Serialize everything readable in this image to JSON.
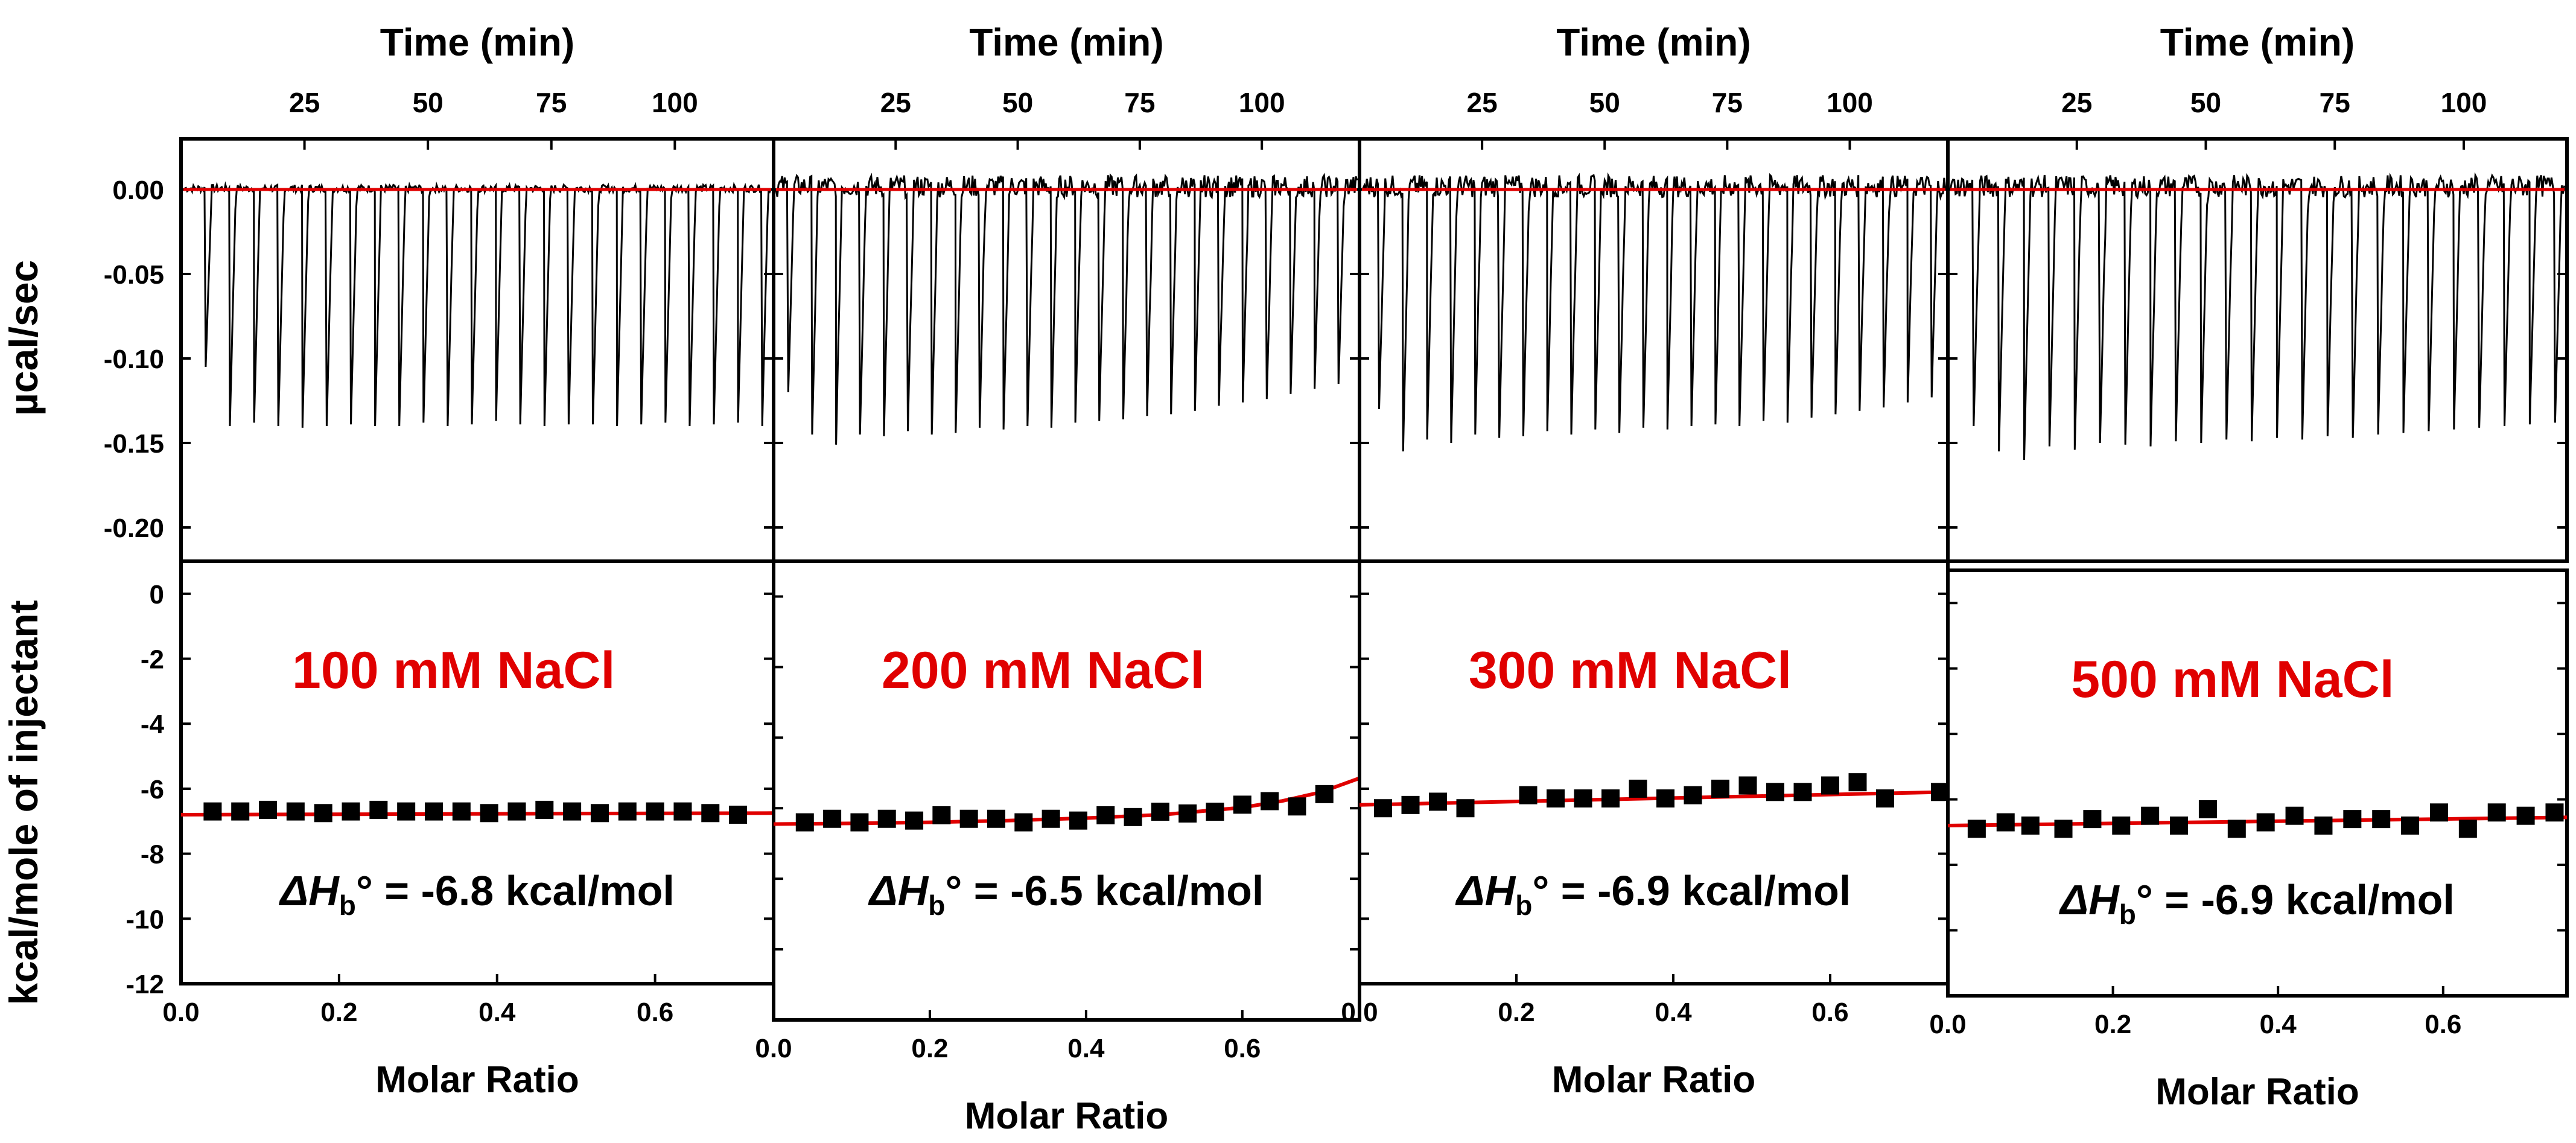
{
  "figure": {
    "y_label_top": "µcal/sec",
    "y_label_bottom": "kcal/mole of injectant",
    "fit_color": "#e00000",
    "data_color": "#000000"
  },
  "chart_data": [
    {
      "type": "line",
      "panel": "raw",
      "salt_label": "100 mM NaCl",
      "top_xlabel": "Time (min)",
      "x_ticks": [
        25,
        50,
        75,
        100
      ],
      "xlim": [
        0,
        120
      ],
      "ylabel": "µcal/sec",
      "ylim": [
        -0.22,
        0.03
      ],
      "y_ticks": [
        "0.00",
        "-0.05",
        "-0.10",
        "-0.15",
        "-0.20"
      ],
      "baseline": 0.0,
      "injection_times": [
        5,
        9.9,
        14.8,
        19.7,
        24.6,
        29.5,
        34.4,
        39.3,
        44.2,
        49.1,
        54,
        58.9,
        63.8,
        68.7,
        73.6,
        78.5,
        83.4,
        88.3,
        93.2,
        98.1,
        103,
        107.9,
        112.8,
        117.7
      ],
      "peak_minima": [
        -0.105,
        -0.14,
        -0.138,
        -0.14,
        -0.141,
        -0.14,
        -0.139,
        -0.14,
        -0.14,
        -0.138,
        -0.14,
        -0.139,
        -0.137,
        -0.139,
        -0.14,
        -0.139,
        -0.139,
        -0.14,
        -0.139,
        -0.138,
        -0.14,
        -0.139,
        -0.138,
        -0.14
      ],
      "noise": 0.002
    },
    {
      "type": "line",
      "panel": "raw",
      "salt_label": "200 mM NaCl",
      "top_xlabel": "Time (min)",
      "x_ticks": [
        25,
        50,
        75,
        100
      ],
      "xlim": [
        0,
        120
      ],
      "ylabel": "µcal/sec",
      "ylim": [
        -0.22,
        0.03
      ],
      "baseline": 0.0,
      "injection_times": [
        3,
        7.9,
        12.8,
        17.7,
        22.6,
        27.5,
        32.4,
        37.3,
        42.2,
        47.1,
        52,
        56.9,
        61.8,
        66.7,
        71.6,
        76.5,
        81.4,
        86.3,
        91.2,
        96.1,
        101,
        105.9,
        110.8,
        115.7
      ],
      "peak_minima": [
        -0.12,
        -0.145,
        -0.151,
        -0.145,
        -0.146,
        -0.143,
        -0.145,
        -0.144,
        -0.141,
        -0.142,
        -0.14,
        -0.141,
        -0.138,
        -0.137,
        -0.136,
        -0.134,
        -0.133,
        -0.131,
        -0.128,
        -0.126,
        -0.124,
        -0.121,
        -0.118,
        -0.115
      ],
      "noise": 0.006
    },
    {
      "type": "line",
      "panel": "raw",
      "salt_label": "300 mM NaCl",
      "top_xlabel": "Time (min)",
      "x_ticks": [
        25,
        50,
        75,
        100
      ],
      "xlim": [
        0,
        120
      ],
      "ylabel": "µcal/sec",
      "ylim": [
        -0.22,
        0.03
      ],
      "baseline": 0.0,
      "injection_times": [
        4,
        8.9,
        13.8,
        18.7,
        23.6,
        28.5,
        33.4,
        38.3,
        43.2,
        48.1,
        53,
        57.9,
        62.8,
        67.7,
        72.6,
        77.5,
        82.4,
        87.3,
        92.2,
        97.1,
        102,
        106.9,
        111.8,
        116.7
      ],
      "peak_minima": [
        -0.13,
        -0.155,
        -0.148,
        -0.15,
        -0.145,
        -0.147,
        -0.146,
        -0.143,
        -0.145,
        -0.142,
        -0.144,
        -0.141,
        -0.142,
        -0.14,
        -0.139,
        -0.14,
        -0.137,
        -0.138,
        -0.135,
        -0.133,
        -0.131,
        -0.129,
        -0.126,
        -0.123
      ],
      "noise": 0.006
    },
    {
      "type": "line",
      "panel": "raw",
      "salt_label": "500 mM NaCl",
      "top_xlabel": "Time (min)",
      "x_ticks": [
        25,
        50,
        75,
        100
      ],
      "xlim": [
        0,
        120
      ],
      "ylabel": "µcal/sec",
      "ylim": [
        -0.22,
        0.03
      ],
      "baseline": 0.0,
      "injection_times": [
        5,
        9.9,
        14.8,
        19.7,
        24.6,
        29.5,
        34.4,
        39.3,
        44.2,
        49.1,
        54,
        58.9,
        63.8,
        68.7,
        73.6,
        78.5,
        83.4,
        88.3,
        93.2,
        98.1,
        103,
        107.9,
        112.8,
        117.7
      ],
      "peak_minima": [
        -0.14,
        -0.155,
        -0.16,
        -0.152,
        -0.154,
        -0.15,
        -0.151,
        -0.152,
        -0.149,
        -0.15,
        -0.148,
        -0.149,
        -0.147,
        -0.148,
        -0.146,
        -0.147,
        -0.145,
        -0.144,
        -0.143,
        -0.142,
        -0.141,
        -0.14,
        -0.139,
        -0.138
      ],
      "noise": 0.006
    },
    {
      "type": "scatter",
      "panel": "integrated",
      "salt_label": "100 mM NaCl",
      "dh_prefix": "ΔH",
      "dh_sub": "b",
      "dh_value": "° = -6.8  kcal/mol",
      "xlabel": "Molar Ratio",
      "ylabel": "kcal/mole of injectant",
      "xlim": [
        0.0,
        0.75
      ],
      "ylim": [
        -12,
        1
      ],
      "x_ticks": [
        "0.0",
        "0.2",
        "0.4",
        "0.6"
      ],
      "y_ticks": [
        "0",
        "-2",
        "-4",
        "-6",
        "-8",
        "-10",
        "-12"
      ],
      "x": [
        0.04,
        0.075,
        0.11,
        0.145,
        0.18,
        0.215,
        0.25,
        0.285,
        0.32,
        0.355,
        0.39,
        0.425,
        0.46,
        0.495,
        0.53,
        0.565,
        0.6,
        0.635,
        0.67,
        0.705
      ],
      "y": [
        -6.7,
        -6.7,
        -6.65,
        -6.7,
        -6.75,
        -6.7,
        -6.65,
        -6.7,
        -6.7,
        -6.7,
        -6.75,
        -6.7,
        -6.65,
        -6.7,
        -6.75,
        -6.7,
        -6.7,
        -6.7,
        -6.75,
        -6.8
      ],
      "fit": {
        "x": [
          0.0,
          0.75
        ],
        "y": [
          -6.8,
          -6.75
        ]
      }
    },
    {
      "type": "scatter",
      "panel": "integrated",
      "salt_label": "200 mM NaCl",
      "dh_prefix": "ΔH",
      "dh_sub": "b",
      "dh_value": "° = -6.5  kcal/mol",
      "xlabel": "Molar Ratio",
      "xlim": [
        0.0,
        0.75
      ],
      "ylim": [
        -12,
        1
      ],
      "x_ticks": [
        "0.0",
        "0.2",
        "0.4",
        "0.6"
      ],
      "x": [
        0.04,
        0.075,
        0.11,
        0.145,
        0.18,
        0.215,
        0.25,
        0.285,
        0.32,
        0.355,
        0.39,
        0.425,
        0.46,
        0.495,
        0.53,
        0.565,
        0.6,
        0.635,
        0.67,
        0.705
      ],
      "y": [
        -6.4,
        -6.3,
        -6.4,
        -6.3,
        -6.35,
        -6.2,
        -6.3,
        -6.3,
        -6.4,
        -6.3,
        -6.35,
        -6.2,
        -6.25,
        -6.1,
        -6.15,
        -6.1,
        -5.9,
        -5.8,
        -5.95,
        -5.6
      ],
      "fit": {
        "x": [
          0.0,
          0.1,
          0.2,
          0.3,
          0.4,
          0.5,
          0.6,
          0.65,
          0.7,
          0.75
        ],
        "y": [
          -6.45,
          -6.43,
          -6.4,
          -6.35,
          -6.28,
          -6.18,
          -5.98,
          -5.8,
          -5.55,
          -5.15
        ]
      }
    },
    {
      "type": "scatter",
      "panel": "integrated",
      "salt_label": "300 mM NaCl",
      "dh_prefix": "ΔH",
      "dh_sub": "b",
      "dh_value": "° = -6.9  kcal/mol",
      "xlabel": "Molar Ratio",
      "xlim": [
        0.0,
        0.75
      ],
      "ylim": [
        -12,
        1
      ],
      "x_ticks": [
        "0.0",
        "0.2",
        "0.4",
        "0.6"
      ],
      "x": [
        0.03,
        0.065,
        0.1,
        0.135,
        0.215,
        0.25,
        0.285,
        0.32,
        0.355,
        0.39,
        0.425,
        0.46,
        0.495,
        0.53,
        0.565,
        0.6,
        0.635,
        0.67,
        0.74
      ],
      "y": [
        -6.6,
        -6.5,
        -6.4,
        -6.6,
        -6.2,
        -6.3,
        -6.3,
        -6.3,
        -6.0,
        -6.3,
        -6.2,
        -6.0,
        -5.9,
        -6.1,
        -6.1,
        -5.9,
        -5.8,
        -6.3,
        -6.1
      ],
      "fit": {
        "x": [
          0.0,
          0.75
        ],
        "y": [
          -6.5,
          -6.1
        ]
      }
    },
    {
      "type": "scatter",
      "panel": "integrated",
      "salt_label": "500 mM NaCl",
      "dh_prefix": "ΔH",
      "dh_sub": "b",
      "dh_value": "° = -6.9  kcal/mol",
      "xlabel": "Molar Ratio",
      "xlim": [
        0.0,
        0.75
      ],
      "ylim": [
        -12,
        1
      ],
      "x_ticks": [
        "0.0",
        "0.2",
        "0.4",
        "0.6"
      ],
      "x": [
        0.035,
        0.07,
        0.1,
        0.14,
        0.175,
        0.21,
        0.245,
        0.28,
        0.315,
        0.35,
        0.385,
        0.42,
        0.455,
        0.49,
        0.525,
        0.56,
        0.595,
        0.63,
        0.665,
        0.7,
        0.735
      ],
      "y": [
        -6.9,
        -6.7,
        -6.8,
        -6.9,
        -6.6,
        -6.8,
        -6.5,
        -6.8,
        -6.3,
        -6.9,
        -6.7,
        -6.5,
        -6.8,
        -6.6,
        -6.6,
        -6.8,
        -6.4,
        -6.9,
        -6.4,
        -6.5,
        -6.4
      ],
      "fit": {
        "x": [
          0.0,
          0.75
        ],
        "y": [
          -6.8,
          -6.55
        ]
      }
    }
  ]
}
